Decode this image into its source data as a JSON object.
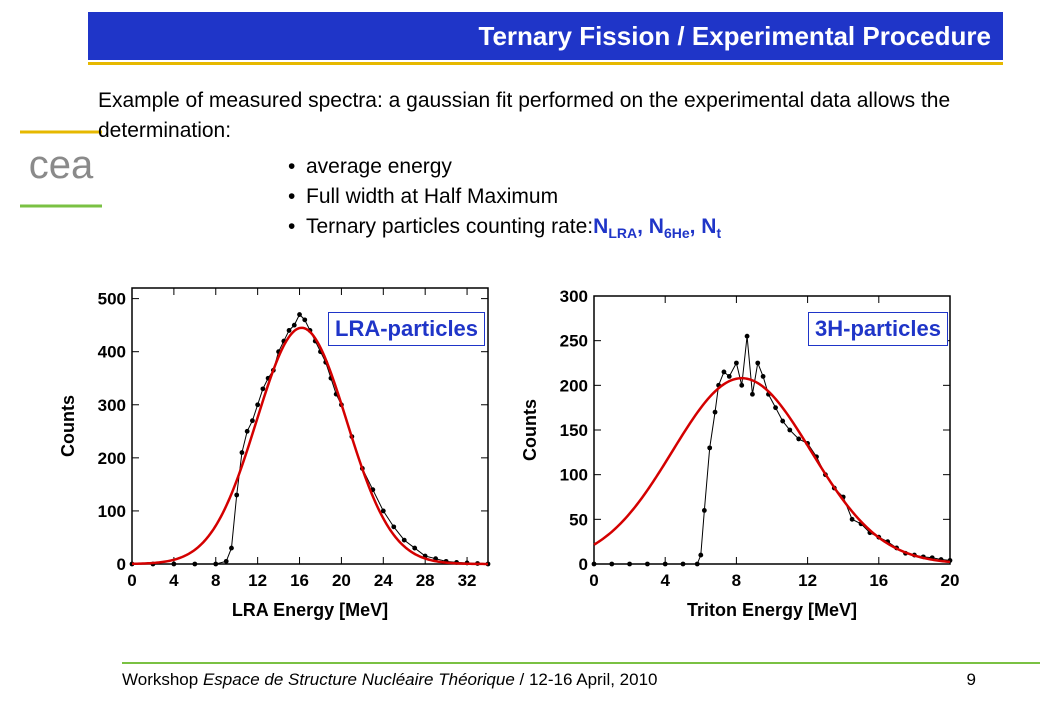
{
  "slide": {
    "title": "Ternary Fission / Experimental Procedure",
    "logo_text": "cea",
    "intro": "Example of measured spectra: a gaussian fit performed on the experimental data allows the determination:",
    "bullets": [
      "average energy",
      "Full width at Half Maximum",
      "Ternary particles counting rate: "
    ],
    "counting_rate": {
      "n1": "N",
      "n1_sub": "LRA",
      "sep1": ", ",
      "n2": "N",
      "n2_sub": "6He",
      "sep2": ", ",
      "n3": "N",
      "n3_sub": "t"
    },
    "footer": {
      "prefix": "Workshop ",
      "event": "Espace de Structure Nucléaire Théorique",
      "suffix": " / 12-16 April, 2010",
      "page": "9"
    },
    "colors": {
      "title_bar": "#1f35c8",
      "accent_yellow": "#e6b800",
      "accent_green": "#7ac143",
      "fit_red": "#d40000"
    }
  },
  "chart_data": [
    {
      "type": "scatter",
      "label": "LRA-particles",
      "xlabel": "LRA Energy [MeV]",
      "ylabel": "Counts",
      "xlim": [
        0,
        34
      ],
      "ylim": [
        0,
        520
      ],
      "xticks": [
        0,
        4,
        8,
        12,
        16,
        20,
        24,
        28,
        32
      ],
      "yticks": [
        0,
        100,
        200,
        300,
        400,
        500
      ],
      "series": [
        {
          "role": "data",
          "x": [
            0,
            2,
            4,
            6,
            8,
            9,
            9.5,
            10,
            10.5,
            11,
            11.5,
            12,
            12.5,
            13,
            13.5,
            14,
            14.5,
            15,
            15.5,
            16,
            16.5,
            17,
            17.5,
            18,
            18.5,
            19,
            19.5,
            20,
            21,
            22,
            23,
            24,
            25,
            26,
            27,
            28,
            29,
            30,
            31,
            32,
            33,
            34
          ],
          "y": [
            0,
            0,
            0,
            0,
            0,
            5,
            30,
            130,
            210,
            250,
            270,
            300,
            330,
            350,
            365,
            400,
            420,
            440,
            450,
            470,
            460,
            440,
            420,
            400,
            380,
            350,
            320,
            300,
            240,
            180,
            140,
            100,
            70,
            45,
            30,
            15,
            10,
            5,
            3,
            2,
            1,
            0
          ]
        },
        {
          "role": "fit",
          "gaussian": {
            "amplitude": 445,
            "mean": 16.2,
            "sigma": 4.3
          }
        }
      ]
    },
    {
      "type": "scatter",
      "label": "3H-particles",
      "xlabel": "Triton Energy [MeV]",
      "ylabel": "Counts",
      "xlim": [
        0,
        20
      ],
      "ylim": [
        0,
        300
      ],
      "xticks": [
        0,
        4,
        8,
        12,
        16,
        20
      ],
      "yticks": [
        0,
        50,
        100,
        150,
        200,
        250,
        300
      ],
      "series": [
        {
          "role": "data",
          "x": [
            0,
            1,
            2,
            3,
            4,
            5,
            5.8,
            6.0,
            6.2,
            6.5,
            6.8,
            7.0,
            7.3,
            7.6,
            8.0,
            8.3,
            8.6,
            8.9,
            9.2,
            9.5,
            9.8,
            10.2,
            10.6,
            11.0,
            11.5,
            12.0,
            12.5,
            13.0,
            13.5,
            14.0,
            14.5,
            15.0,
            15.5,
            16.0,
            16.5,
            17.0,
            17.5,
            18.0,
            18.5,
            19.0,
            19.5,
            20.0
          ],
          "y": [
            0,
            0,
            0,
            0,
            0,
            0,
            0,
            10,
            60,
            130,
            170,
            200,
            215,
            210,
            225,
            200,
            255,
            190,
            225,
            210,
            190,
            175,
            160,
            150,
            140,
            135,
            120,
            100,
            85,
            75,
            50,
            45,
            35,
            30,
            25,
            18,
            12,
            10,
            8,
            7,
            5,
            4
          ]
        },
        {
          "role": "fit",
          "gaussian": {
            "amplitude": 208,
            "mean": 8.3,
            "sigma": 3.9
          }
        }
      ]
    }
  ]
}
